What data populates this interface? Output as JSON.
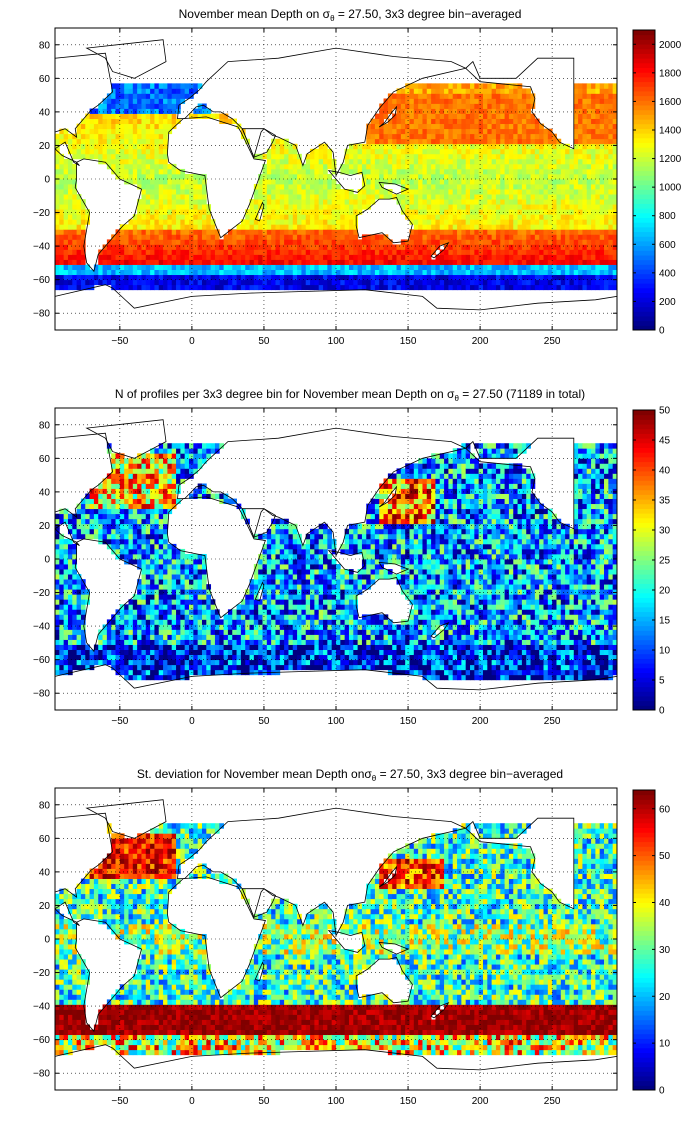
{
  "panels": [
    {
      "title_main": "November mean Depth on σ",
      "title_sub": "θ",
      "title_rest": " = 27.50, 3x3 degree bin−averaged"
    },
    {
      "title_main": "N of profiles per 3x3 degree bin for November mean Depth on σ",
      "title_sub": "θ",
      "title_rest": " = 27.50 (71189 in total)"
    },
    {
      "title_main": "St. deviation for November mean Depth onσ",
      "title_sub": "θ",
      "title_rest": " = 27.50, 3x3 degree bin−averaged"
    }
  ],
  "chart_data": [
    {
      "type": "heatmap",
      "title": "November mean Depth on σθ = 27.50, 3x3 degree bin−averaged",
      "xlim": [
        -95,
        295
      ],
      "ylim": [
        -90,
        90
      ],
      "x_ticks": [
        -50,
        0,
        50,
        100,
        150,
        200,
        250
      ],
      "y_ticks": [
        80,
        60,
        40,
        20,
        0,
        -20,
        -40,
        -60,
        -80
      ],
      "grid": true,
      "colorbar": {
        "min": 0,
        "max": 2100,
        "ticks": [
          0,
          200,
          400,
          600,
          800,
          1000,
          1200,
          1400,
          1600,
          1800,
          2000
        ]
      },
      "field": "depth"
    },
    {
      "type": "heatmap",
      "title": "N of profiles per 3x3 degree bin for November mean Depth on σθ = 27.50 (71189 in total)",
      "xlim": [
        -95,
        295
      ],
      "ylim": [
        -90,
        90
      ],
      "x_ticks": [
        -50,
        0,
        50,
        100,
        150,
        200,
        250
      ],
      "y_ticks": [
        80,
        60,
        40,
        20,
        0,
        -20,
        -40,
        -60,
        -80
      ],
      "grid": true,
      "colorbar": {
        "min": 0,
        "max": 50,
        "ticks": [
          0,
          5,
          10,
          15,
          20,
          25,
          30,
          35,
          40,
          45,
          50
        ]
      },
      "field": "count"
    },
    {
      "type": "heatmap",
      "title": "St. deviation for November mean Depth onσθ = 27.50, 3x3 degree bin−averaged",
      "xlim": [
        -95,
        295
      ],
      "ylim": [
        -90,
        90
      ],
      "x_ticks": [
        -50,
        0,
        50,
        100,
        150,
        200,
        250
      ],
      "y_ticks": [
        80,
        60,
        40,
        20,
        0,
        -20,
        -40,
        -60,
        -80
      ],
      "grid": true,
      "colorbar": {
        "min": 0,
        "max": 64,
        "ticks": [
          0,
          10,
          20,
          30,
          40,
          50,
          60
        ]
      },
      "field": "std"
    }
  ]
}
